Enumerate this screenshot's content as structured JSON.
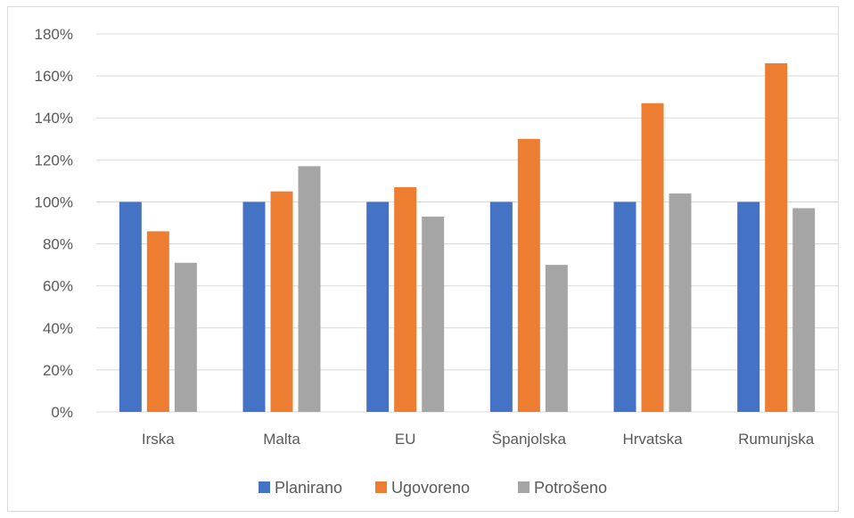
{
  "chart_data": {
    "type": "bar",
    "categories": [
      "Irska",
      "Malta",
      "EU",
      "Španjolska",
      "Hrvatska",
      "Rumunjska"
    ],
    "series": [
      {
        "name": "Planirano",
        "values": [
          100,
          100,
          100,
          100,
          100,
          100
        ],
        "color": "#4472c4"
      },
      {
        "name": "Ugovoreno",
        "values": [
          86,
          105,
          107,
          130,
          147,
          166
        ],
        "color": "#ed7d31"
      },
      {
        "name": "Potrošeno",
        "values": [
          71,
          117,
          93,
          70,
          104,
          97
        ],
        "color": "#a5a5a5"
      }
    ],
    "y_ticks": [
      "0%",
      "20%",
      "40%",
      "60%",
      "80%",
      "100%",
      "120%",
      "140%",
      "160%",
      "180%"
    ],
    "ylim": [
      0,
      180
    ],
    "grid": true,
    "legend_position": "bottom"
  }
}
